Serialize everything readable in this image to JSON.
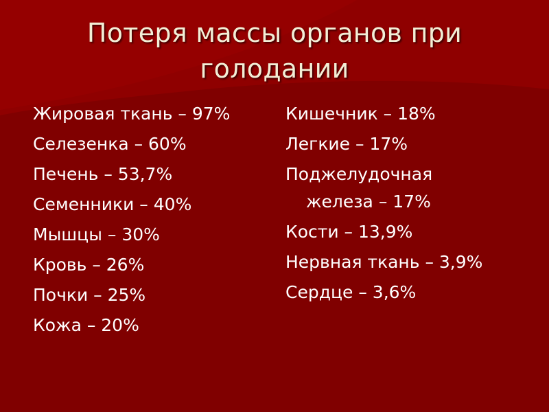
{
  "slide": {
    "title": "Потеря массы органов при голодании",
    "left_items": [
      "Жировая ткань – 97%",
      "Селезенка – 60%",
      "Печень – 53,7%",
      "Семенники – 40%",
      "Мышцы – 30%",
      "Кровь – 26%",
      "Почки – 25%",
      "Кожа – 20%"
    ],
    "right_items": [
      "Кишечник – 18%",
      "Легкие – 17%",
      "Поджелудочная железа – 17%",
      "Кости – 13,9%",
      "Нервная ткань – 3,9%",
      "Сердце – 3,6%"
    ],
    "colors": {
      "background": "#800000",
      "title": "#f2eed6",
      "text": "#ffffff"
    }
  }
}
